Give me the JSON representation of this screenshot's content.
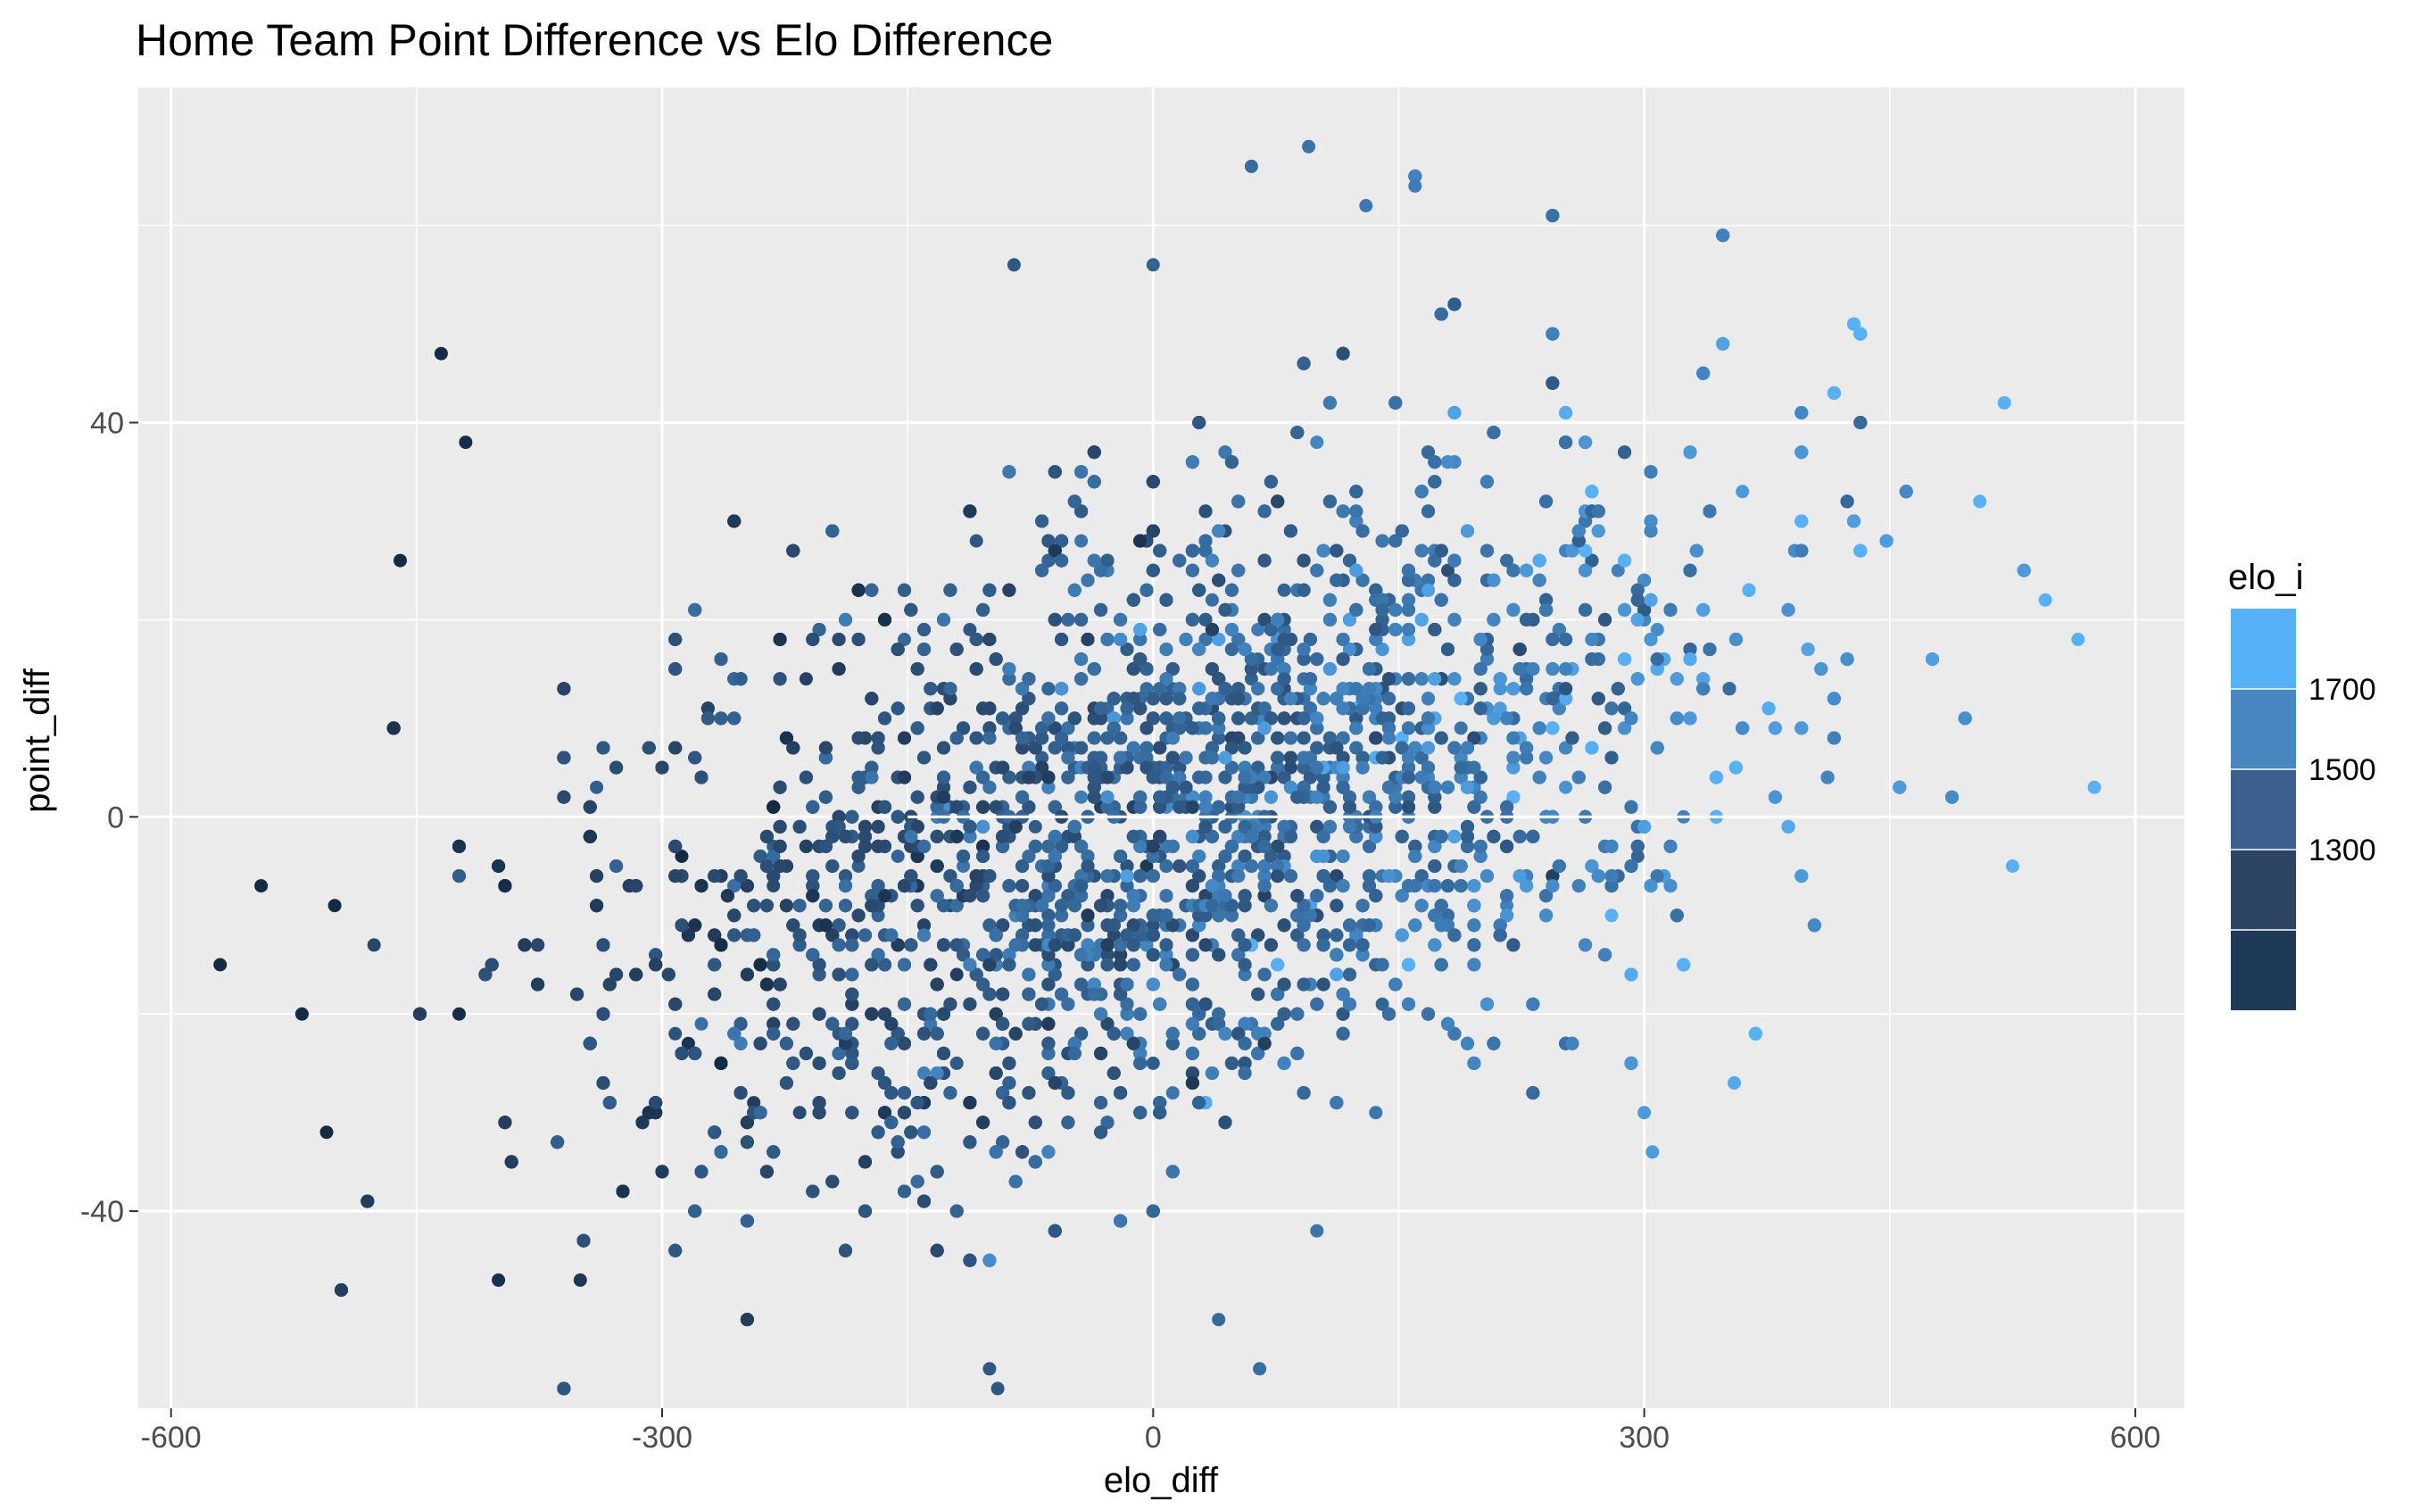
{
  "chart_data": {
    "type": "scatter",
    "title": "Home Team Point Difference vs Elo Difference",
    "xlabel": "elo_diff",
    "ylabel": "point_diff",
    "xlim": [
      -620,
      630
    ],
    "ylim": [
      -60,
      74
    ],
    "x_ticks": [
      -600,
      -300,
      0,
      300,
      600
    ],
    "x_tick_labels": [
      "-600",
      "-300",
      "0",
      "300",
      "600"
    ],
    "y_ticks": [
      -40,
      0,
      40
    ],
    "y_tick_labels": [
      "-40",
      "0",
      "40"
    ],
    "x_minor_ticks": [
      -450,
      -150,
      150,
      450
    ],
    "y_minor_ticks": [
      -20,
      20,
      60
    ],
    "grid": true,
    "panel_background": "#EBEBEB",
    "grid_color": "#FFFFFF",
    "legend": {
      "title": "elo_i",
      "placement": "right",
      "bins": [
        {
          "color": "#56B1F7"
        },
        {
          "color": "#4887C2",
          "label": "1700"
        },
        {
          "color": "#3C5F90",
          "label": "1500"
        },
        {
          "color": "#2D4463",
          "label": "1300"
        },
        {
          "color": "#1F3A57"
        }
      ]
    },
    "highlight_points": [
      {
        "x": -570,
        "y": -15
      },
      {
        "x": -545,
        "y": -7
      },
      {
        "x": -505,
        "y": -32
      },
      {
        "x": -460,
        "y": 26
      },
      {
        "x": -435,
        "y": 47
      },
      {
        "x": -420,
        "y": 38
      },
      {
        "x": -350,
        "y": -47
      },
      {
        "x": -400,
        "y": -47
      },
      {
        "x": -95,
        "y": -58
      },
      {
        "x": -100,
        "y": -56
      },
      {
        "x": 65,
        "y": -56
      },
      {
        "x": 40,
        "y": -51
      },
      {
        "x": 95,
        "y": 68
      },
      {
        "x": 60,
        "y": 66
      },
      {
        "x": 160,
        "y": 64
      },
      {
        "x": 130,
        "y": 62
      },
      {
        "x": -85,
        "y": 56
      },
      {
        "x": 0,
        "y": 56
      },
      {
        "x": 575,
        "y": 3
      },
      {
        "x": 565,
        "y": 18
      },
      {
        "x": 520,
        "y": 42
      },
      {
        "x": 545,
        "y": 22
      },
      {
        "x": 505,
        "y": 32
      },
      {
        "x": 525,
        "y": -5
      },
      {
        "x": 355,
        "y": -27
      },
      {
        "x": 300,
        "y": -30
      },
      {
        "x": 305,
        "y": -34
      },
      {
        "x": 100,
        "y": -42
      },
      {
        "x": -520,
        "y": -20
      },
      {
        "x": -500,
        "y": -9
      }
    ],
    "density_notes": "Dense elliptical cloud centered near (0, 0) oriented with positive correlation; lighter (higher elo_i) points dominate the upper right, darker (lower elo_i) points the lower left."
  }
}
